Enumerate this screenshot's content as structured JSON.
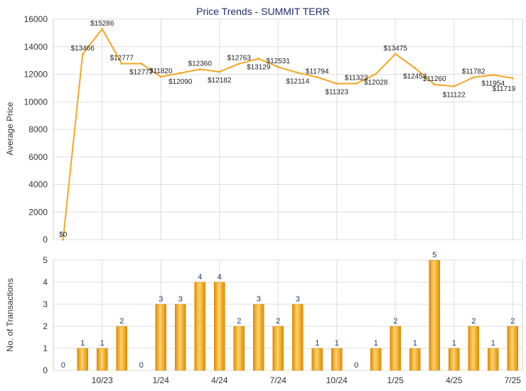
{
  "chart_data": [
    {
      "type": "line",
      "title": "Price Trends - SUMMIT TERR",
      "ylabel": "Average Price",
      "ylim": [
        0,
        16000
      ],
      "yticks": [
        0,
        2000,
        4000,
        6000,
        8000,
        10000,
        12000,
        14000,
        16000
      ],
      "grid": true,
      "line_color": "#f5a623",
      "values": [
        0,
        13466,
        15286,
        12777,
        12777,
        11820,
        12090,
        12360,
        12182,
        12763,
        13129,
        12531,
        12114,
        11794,
        11323,
        11323,
        12028,
        13475,
        12453,
        11260,
        11122,
        11782,
        11954,
        11719
      ],
      "labels": [
        "$0",
        "$13466",
        "$15286",
        "$12777",
        "$12777",
        "$11820",
        "$12090",
        "$12360",
        "$12182",
        "$12763",
        "$13129",
        "$12531",
        "$12114",
        "$11794",
        "$11323",
        "$11323",
        "$12028",
        "$13475",
        "$12453",
        "$11260",
        "$11122",
        "$11782",
        "$11954",
        "$11719"
      ]
    },
    {
      "type": "bar",
      "ylabel": "No. of Transactions",
      "ylim": [
        0,
        5
      ],
      "yticks": [
        0,
        1,
        2,
        3,
        4,
        5
      ],
      "grid": true,
      "bar_color": "#f5a623",
      "values": [
        0,
        1,
        1,
        2,
        0,
        3,
        3,
        4,
        4,
        2,
        3,
        2,
        3,
        1,
        1,
        0,
        1,
        2,
        1,
        5,
        1,
        2,
        1,
        2
      ],
      "xticks": [
        {
          "index": 2,
          "label": "10/23"
        },
        {
          "index": 5,
          "label": "1/24"
        },
        {
          "index": 8,
          "label": "4/24"
        },
        {
          "index": 11,
          "label": "7/24"
        },
        {
          "index": 14,
          "label": "10/24"
        },
        {
          "index": 17,
          "label": "1/25"
        },
        {
          "index": 20,
          "label": "4/25"
        },
        {
          "index": 23,
          "label": "7/25"
        }
      ]
    }
  ]
}
